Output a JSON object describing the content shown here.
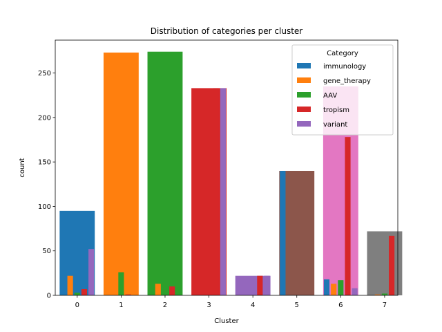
{
  "chart_data": {
    "type": "bar",
    "title": "Distribution of categories per cluster",
    "xlabel": "Cluster",
    "ylabel": "count",
    "categories": [
      "0",
      "1",
      "2",
      "3",
      "4",
      "5",
      "6",
      "7"
    ],
    "ylim": [
      0,
      287
    ],
    "yticks": [
      0,
      50,
      100,
      150,
      200,
      250
    ],
    "grid": false,
    "legend": {
      "title": "Category",
      "placement": "top-right"
    },
    "cluster_totals": {
      "values": [
        95,
        273,
        274,
        233,
        22,
        140,
        235,
        72
      ],
      "colors": [
        "#1f77b4",
        "#ff7f0e",
        "#2ca02c",
        "#d62728",
        "#9467bd",
        "#8c564b",
        "#e377c2",
        "#7f7f7f"
      ]
    },
    "series": [
      {
        "name": "immunology",
        "color": "#1f77b4",
        "values": [
          0,
          0,
          0,
          0,
          0,
          140,
          18,
          0
        ]
      },
      {
        "name": "gene_therapy",
        "color": "#ff7f0e",
        "values": [
          22,
          0,
          13,
          0,
          0,
          0,
          13,
          1
        ]
      },
      {
        "name": "AAV",
        "color": "#2ca02c",
        "values": [
          3,
          26,
          0,
          0,
          0,
          0,
          17,
          2
        ]
      },
      {
        "name": "tropism",
        "color": "#d62728",
        "values": [
          7,
          1,
          10,
          233,
          22,
          0,
          178,
          67
        ]
      },
      {
        "name": "variant",
        "color": "#9467bd",
        "values": [
          52,
          0,
          0,
          233,
          22,
          0,
          8,
          0
        ]
      }
    ]
  }
}
